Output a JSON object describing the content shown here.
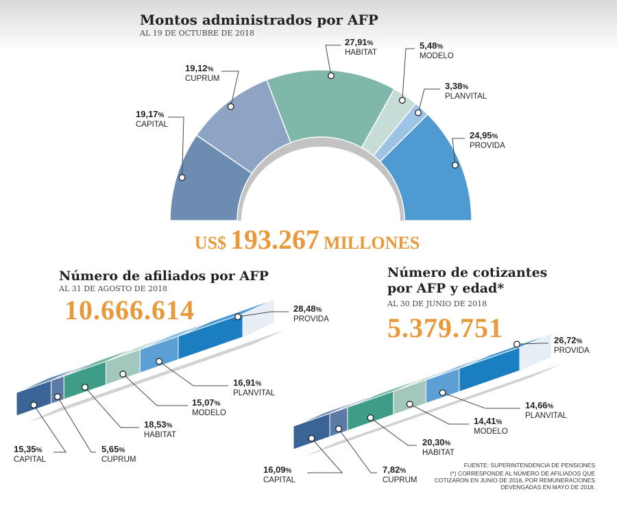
{
  "chart_data": [
    {
      "type": "semicircle-donut",
      "title": "Montos administrados por AFP",
      "subtitle": "AL 19 DE OCTUBRE DE 2018",
      "total": {
        "prefix": "US$",
        "value": "193.267",
        "suffix": "MILLONES"
      },
      "slices": [
        {
          "name": "CAPITAL",
          "value": 19.17,
          "label": "19,17",
          "color": "#6d8cb1"
        },
        {
          "name": "CUPRUM",
          "value": 19.12,
          "label": "19,12",
          "color": "#8da4c4"
        },
        {
          "name": "HABITAT",
          "value": 27.91,
          "label": "27,91",
          "color": "#7fb8aa"
        },
        {
          "name": "MODELO",
          "value": 5.48,
          "label": "5,48",
          "color": "#c5ddd6"
        },
        {
          "name": "PLANVITAL",
          "value": 3.38,
          "label": "3,38",
          "color": "#9dc3e5"
        },
        {
          "name": "PROVIDA",
          "value": 24.95,
          "label": "24,95",
          "color": "#4f9bd1"
        }
      ]
    },
    {
      "type": "bar",
      "title": "Número de afiliados por AFP",
      "subtitle": "AL 31 DE AGOSTO DE 2018",
      "total": "10.666.614",
      "categories": [
        "CAPITAL",
        "CUPRUM",
        "HABITAT",
        "MODELO",
        "PLANVITAL",
        "PROVIDA"
      ],
      "values": [
        15.35,
        5.65,
        18.53,
        15.07,
        16.91,
        28.48
      ],
      "labels": [
        "15,35",
        "5,65",
        "18,53",
        "15,07",
        "16,91",
        "28,48"
      ]
    },
    {
      "type": "bar",
      "title": [
        "Número de cotizantes",
        "por AFP y edad*"
      ],
      "subtitle": "AL 30 DE JUNIO DE 2018",
      "total": "5.379.751",
      "categories": [
        "CAPITAL",
        "CUPRUM",
        "HABITAT",
        "MODELO",
        "PLANVITAL",
        "PROVIDA"
      ],
      "values": [
        16.09,
        7.82,
        20.3,
        14.41,
        14.66,
        26.72
      ],
      "labels": [
        "16,09",
        "7,82",
        "20,30",
        "14,41",
        "14,66",
        "26,72"
      ]
    }
  ],
  "percent_sign": "%",
  "footnotes": [
    "FUENTE: SUPERINTENDENCIA DE PENSIONES",
    "(*) CORRESPONDE AL NÚMERO DE AFILIADOS QUE",
    "COTIZARON EN JUNIO DE 2018, POR REMUNERACIONES",
    "DEVENGADAS EN MAYO DE 2018."
  ]
}
